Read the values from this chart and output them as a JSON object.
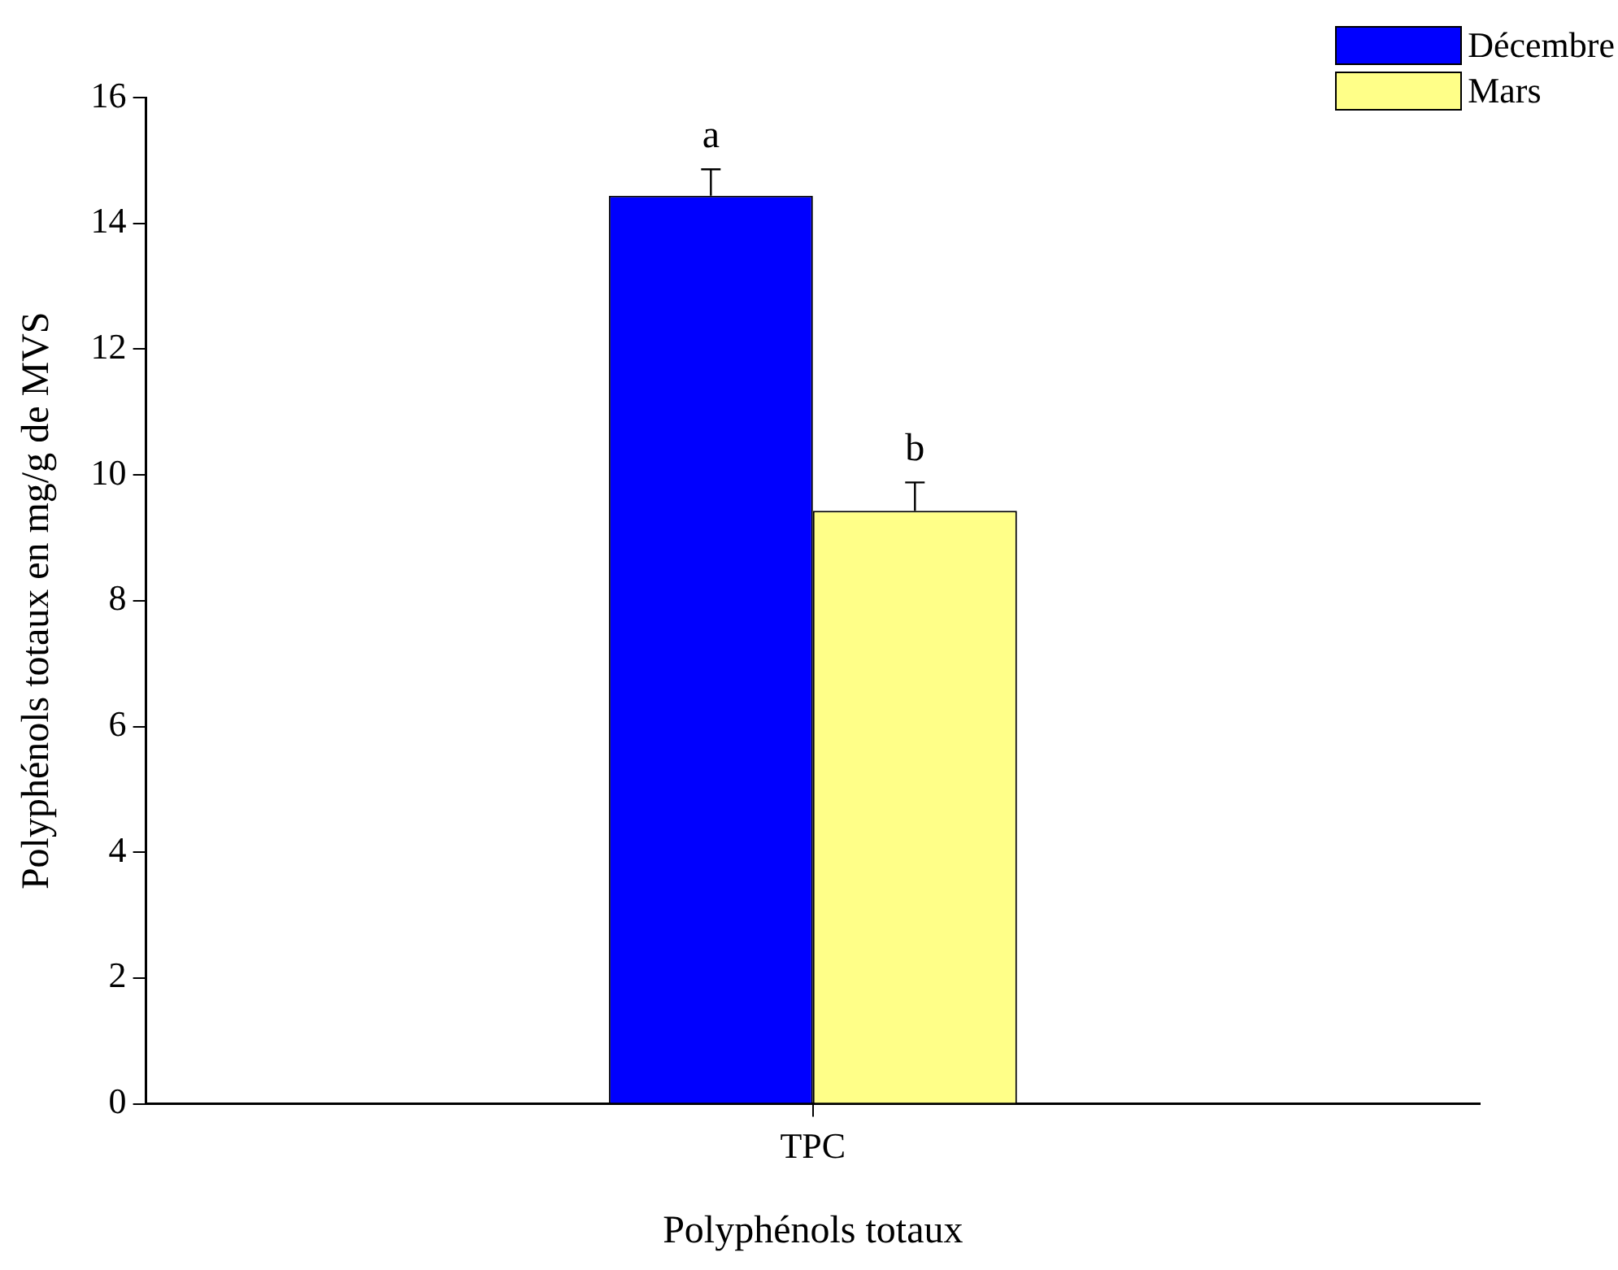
{
  "chart_data": {
    "type": "bar",
    "xlabel": "Polyphénols totaux",
    "ylabel": "Polyphénols totaux en mg/g de MVS",
    "categories": [
      "TPC"
    ],
    "series": [
      {
        "name": "Décembre",
        "color": "#0000ff",
        "values": [
          14.44
        ],
        "errors": [
          [
            14.44,
            14.86
          ]
        ]
      },
      {
        "name": "Mars",
        "color": "#ffff88",
        "values": [
          9.43
        ],
        "errors": [
          [
            9.43,
            9.88
          ]
        ]
      }
    ],
    "ylim": [
      0,
      16
    ],
    "yticks": [
      0,
      2,
      4,
      6,
      8,
      10,
      12,
      14,
      16
    ],
    "grid": false,
    "legend": "top right",
    "annotations": [
      "a",
      "b"
    ]
  }
}
